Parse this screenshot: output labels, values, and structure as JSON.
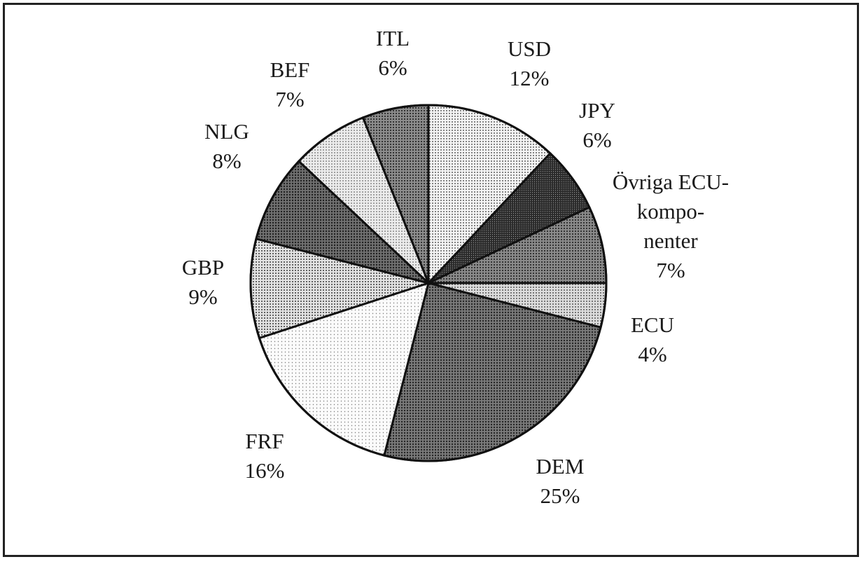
{
  "chart_data": {
    "type": "pie",
    "start_angle_deg": 0,
    "direction": "clockwise",
    "slices": [
      {
        "label": "USD",
        "value_label": "12%",
        "value": 12,
        "pattern": "p-usd",
        "label_lines": [
          "USD",
          "12%"
        ]
      },
      {
        "label": "JPY",
        "value_label": "6%",
        "value": 6,
        "pattern": "p-jpy",
        "label_lines": [
          "JPY",
          "6%"
        ]
      },
      {
        "label": "Övriga ECU-komponenter",
        "value_label": "7%",
        "value": 7,
        "pattern": "p-ovr",
        "label_lines": [
          "Övriga ECU-",
          "kompo-",
          "nenter",
          "7%"
        ]
      },
      {
        "label": "ECU",
        "value_label": "4%",
        "value": 4,
        "pattern": "p-ecu",
        "label_lines": [
          "ECU",
          "4%"
        ]
      },
      {
        "label": "DEM",
        "value_label": "25%",
        "value": 25,
        "pattern": "p-dem",
        "label_lines": [
          "DEM",
          "25%"
        ]
      },
      {
        "label": "FRF",
        "value_label": "16%",
        "value": 16,
        "pattern": "p-frf",
        "label_lines": [
          "FRF",
          "16%"
        ]
      },
      {
        "label": "GBP",
        "value_label": "9%",
        "value": 9,
        "pattern": "p-gbp",
        "label_lines": [
          "GBP",
          "9%"
        ]
      },
      {
        "label": "NLG",
        "value_label": "8%",
        "value": 8,
        "pattern": "p-nlg",
        "label_lines": [
          "NLG",
          "8%"
        ]
      },
      {
        "label": "BEF",
        "value_label": "7%",
        "value": 7,
        "pattern": "p-bef",
        "label_lines": [
          "BEF",
          "7%"
        ]
      },
      {
        "label": "ITL",
        "value_label": "6%",
        "value": 6,
        "pattern": "p-itl",
        "label_lines": [
          "ITL",
          "6%"
        ]
      }
    ],
    "colors": {
      "outline": "#111111",
      "background": "#ffffff"
    }
  }
}
